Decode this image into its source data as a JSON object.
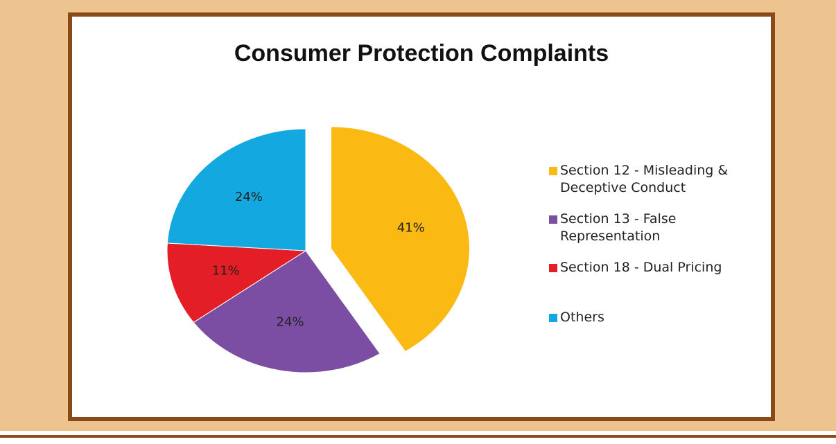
{
  "chart_data": {
    "type": "pie",
    "title": "Consumer Protection Complaints",
    "categories": [
      "Section 12 - Misleading & Deceptive Conduct",
      "Section 13 - False Representation",
      "Section 18 - Dual Pricing",
      "Others"
    ],
    "values": [
      41,
      24,
      11,
      24
    ],
    "value_labels": [
      "41%",
      "24%",
      "11%",
      "24%"
    ],
    "colors": [
      "#fbb913",
      "#7b4ea3",
      "#e31e26",
      "#13a9e0"
    ],
    "exploded": [
      true,
      false,
      false,
      false
    ],
    "legend": "right"
  }
}
